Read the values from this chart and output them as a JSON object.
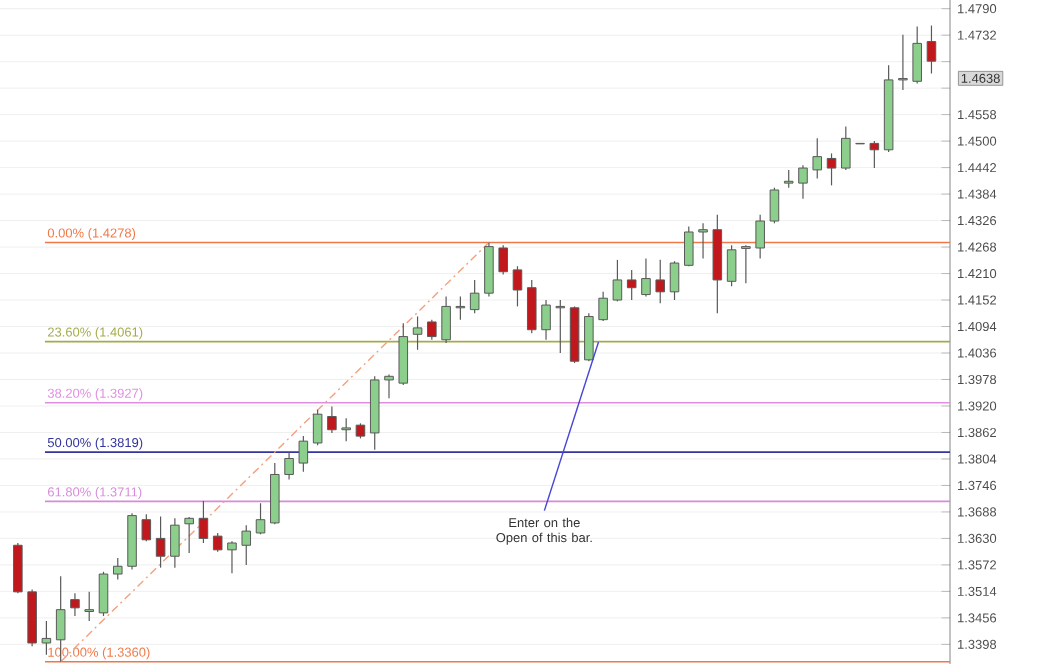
{
  "chart_data": {
    "type": "candlestick",
    "categories": [
      null,
      null,
      null,
      null,
      null,
      null,
      null,
      null,
      null,
      null,
      null,
      null,
      null,
      null,
      null,
      null,
      null,
      null,
      null,
      null,
      null,
      null,
      null,
      null,
      null,
      null,
      null,
      null,
      null,
      null,
      null,
      null,
      null,
      null,
      null,
      null,
      null,
      null,
      null,
      null,
      null,
      null,
      null,
      null,
      null,
      null,
      null,
      null,
      null,
      null,
      null,
      null,
      null,
      null,
      null,
      null,
      null,
      null,
      null,
      null,
      null,
      null,
      null,
      null,
      null
    ],
    "ohlc": [
      [
        1.3615,
        1.362,
        1.351,
        1.3513
      ],
      [
        1.3513,
        1.3518,
        1.3394,
        1.3401
      ],
      [
        1.3401,
        1.3449,
        1.3375,
        1.3411
      ],
      [
        1.3408,
        1.3547,
        1.336,
        1.3474
      ],
      [
        1.3496,
        1.351,
        1.346,
        1.3478
      ],
      [
        1.347,
        1.3513,
        1.3449,
        1.3474
      ],
      [
        1.3467,
        1.3557,
        1.346,
        1.3552
      ],
      [
        1.3552,
        1.3587,
        1.354,
        1.3569
      ],
      [
        1.3569,
        1.3685,
        1.3562,
        1.368
      ],
      [
        1.3671,
        1.3683,
        1.3624,
        1.3627
      ],
      [
        1.363,
        1.3678,
        1.3566,
        1.3591
      ],
      [
        1.3591,
        1.3674,
        1.3566,
        1.3659
      ],
      [
        1.3662,
        1.3677,
        1.3598,
        1.3674
      ],
      [
        1.3674,
        1.3712,
        1.362,
        1.363
      ],
      [
        1.3635,
        1.3642,
        1.3601,
        1.3605
      ],
      [
        1.3605,
        1.3624,
        1.3554,
        1.362
      ],
      [
        1.3615,
        1.3659,
        1.3572,
        1.3646
      ],
      [
        1.3642,
        1.3707,
        1.3639,
        1.3671
      ],
      [
        1.3664,
        1.3795,
        1.3661,
        1.377
      ],
      [
        1.377,
        1.382,
        1.3759,
        1.3805
      ],
      [
        1.3795,
        1.3854,
        1.3776,
        1.3843
      ],
      [
        1.3839,
        1.3912,
        1.3834,
        1.3902
      ],
      [
        1.3897,
        1.3919,
        1.3861,
        1.3868
      ],
      [
        1.3868,
        1.3893,
        1.3843,
        1.3872
      ],
      [
        1.3878,
        1.3882,
        1.3849,
        1.3854
      ],
      [
        1.3861,
        1.3985,
        1.3824,
        1.3977
      ],
      [
        1.3977,
        1.3989,
        1.3937,
        1.3985
      ],
      [
        1.397,
        1.4101,
        1.3966,
        1.4072
      ],
      [
        1.4077,
        1.4116,
        1.4043,
        1.4091
      ],
      [
        1.4104,
        1.4109,
        1.4065,
        1.4072
      ],
      [
        1.4065,
        1.416,
        1.4058,
        1.4138
      ],
      [
        1.4135,
        1.416,
        1.4109,
        1.4138
      ],
      [
        1.4131,
        1.4196,
        1.4123,
        1.4167
      ],
      [
        1.4167,
        1.4278,
        1.416,
        1.4269
      ],
      [
        1.4266,
        1.4272,
        1.4208,
        1.4214
      ],
      [
        1.4218,
        1.4226,
        1.4138,
        1.4174
      ],
      [
        1.4179,
        1.4196,
        1.4079,
        1.4087
      ],
      [
        1.4087,
        1.4152,
        1.4065,
        1.4141
      ],
      [
        1.4135,
        1.4152,
        1.4036,
        1.4138
      ],
      [
        1.4135,
        1.4138,
        1.4014,
        1.4018
      ],
      [
        1.4021,
        1.4123,
        1.4018,
        1.4116
      ],
      [
        1.4109,
        1.417,
        1.4106,
        1.4156
      ],
      [
        1.4152,
        1.424,
        1.4149,
        1.4196
      ],
      [
        1.4196,
        1.4218,
        1.4152,
        1.4179
      ],
      [
        1.4164,
        1.4243,
        1.416,
        1.4199
      ],
      [
        1.4196,
        1.424,
        1.4145,
        1.417
      ],
      [
        1.417,
        1.4237,
        1.4152,
        1.4233
      ],
      [
        1.4228,
        1.4313,
        1.4226,
        1.4301
      ],
      [
        1.4301,
        1.432,
        1.4243,
        1.4306
      ],
      [
        1.4306,
        1.4339,
        1.4123,
        1.4196
      ],
      [
        1.4193,
        1.4272,
        1.4182,
        1.4262
      ],
      [
        1.4265,
        1.4272,
        1.4189,
        1.4269
      ],
      [
        1.4266,
        1.4339,
        1.4243,
        1.4325
      ],
      [
        1.4325,
        1.4398,
        1.432,
        1.4393
      ],
      [
        1.4408,
        1.4437,
        1.4398,
        1.4412
      ],
      [
        1.4408,
        1.4447,
        1.4374,
        1.4441
      ],
      [
        1.4437,
        1.4506,
        1.4418,
        1.4466
      ],
      [
        1.4462,
        1.4473,
        1.4403,
        1.4441
      ],
      [
        1.4441,
        1.4532,
        1.4437,
        1.4506
      ],
      [
        1.4494,
        1.4495,
        1.4494,
        1.4495
      ],
      [
        1.4495,
        1.45,
        1.4441,
        1.4481
      ],
      [
        1.4481,
        1.4666,
        1.4476,
        1.4634
      ],
      [
        1.4634,
        1.4733,
        1.4612,
        1.4637
      ],
      [
        1.4631,
        1.4751,
        1.4626,
        1.4714
      ],
      [
        1.4718,
        1.4753,
        1.4648,
        1.4675
      ]
    ],
    "series": [
      {
        "type": "line",
        "values": [
          null,
          null,
          null,
          1.336,
          null,
          null,
          null,
          null,
          null,
          null,
          null,
          null,
          null,
          null,
          null,
          null,
          null,
          null,
          null,
          null,
          null,
          null,
          null,
          null,
          null,
          null,
          null,
          null,
          null,
          null,
          null,
          null,
          null,
          1.4278,
          null,
          null,
          null,
          null,
          null,
          null,
          null,
          null,
          null,
          null,
          null,
          null,
          null,
          null,
          null,
          null,
          null,
          null,
          null,
          null,
          null,
          null,
          null,
          null,
          null,
          null,
          null,
          null,
          null,
          null,
          null
        ],
        "color": "#f4a07c",
        "line_style": "dashed"
      }
    ],
    "ylim": [
      1.3355,
      1.4809
    ],
    "yticks": [
      {
        "value": 1.3398,
        "label": "1.3398"
      },
      {
        "value": 1.3456,
        "label": "1.3456"
      },
      {
        "value": 1.3514,
        "label": "1.3514"
      },
      {
        "value": 1.3572,
        "label": "1.3572"
      },
      {
        "value": 1.363,
        "label": "1.3630"
      },
      {
        "value": 1.3688,
        "label": "1.3688"
      },
      {
        "value": 1.3746,
        "label": "1.3746"
      },
      {
        "value": 1.3804,
        "label": "1.3804"
      },
      {
        "value": 1.3862,
        "label": "1.3862"
      },
      {
        "value": 1.392,
        "label": "1.3920"
      },
      {
        "value": 1.3978,
        "label": "1.3978"
      },
      {
        "value": 1.4036,
        "label": "1.4036"
      },
      {
        "value": 1.4094,
        "label": "1.4094"
      },
      {
        "value": 1.4152,
        "label": "1.4152"
      },
      {
        "value": 1.421,
        "label": "1.4210"
      },
      {
        "value": 1.4268,
        "label": "1.4268"
      },
      {
        "value": 1.4326,
        "label": "1.4326"
      },
      {
        "value": 1.4384,
        "label": "1.4384"
      },
      {
        "value": 1.4442,
        "label": "1.4442"
      },
      {
        "value": 1.45,
        "label": "1.4500"
      },
      {
        "value": 1.4558,
        "label": "1.4558"
      },
      {
        "value": 1.4616,
        "label": null
      },
      {
        "value": 1.4674,
        "label": null
      },
      {
        "value": 1.4732,
        "label": "1.4732"
      },
      {
        "value": 1.479,
        "label": "1.4790"
      }
    ],
    "ref_lines": [
      {
        "axis": "y",
        "value": 1.4278,
        "label": "0.00% (1.4278)",
        "color": "#f07848"
      },
      {
        "axis": "y",
        "value": 1.4061,
        "label": "23.60% (1.4061)",
        "color": "#a4ac48"
      },
      {
        "axis": "y",
        "value": 1.3927,
        "label": "38.20% (1.3927)",
        "color": "#e08ee0"
      },
      {
        "axis": "y",
        "value": 1.3819,
        "label": "50.00% (1.3819)",
        "color": "#34349e"
      },
      {
        "axis": "y",
        "value": 1.3711,
        "label": "61.80% (1.3711)",
        "color": "#d88ad8"
      },
      {
        "axis": "y",
        "value": 1.336,
        "label": "100.00% (1.3360)",
        "color": "#f07848"
      }
    ],
    "annotations": [
      "Enter on the Open of this bar.",
      "1.4638"
    ],
    "grid": true
  }
}
